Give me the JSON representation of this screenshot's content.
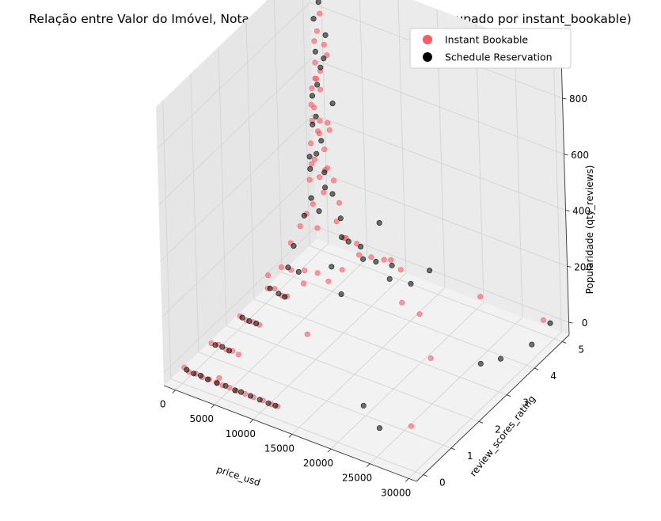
{
  "chart_data": {
    "type": "scatter",
    "projection": "3d",
    "title": "Relação entre Valor do Imóvel, Nota de Avaliação e Popularidade (agrupado por instant_bookable)",
    "xlabel": "price_usd",
    "ylabel": "review_scores_rating",
    "zlabel": "Popularidade (qty_reviews)",
    "xlim": [
      -1500,
      31000
    ],
    "ylim": [
      -0.25,
      5.25
    ],
    "zlim": [
      -45,
      950
    ],
    "x_ticks": [
      "0",
      "5000",
      "10000",
      "15000",
      "20000",
      "25000",
      "30000"
    ],
    "y_ticks": [
      "0",
      "1",
      "2",
      "3",
      "4",
      "5"
    ],
    "z_ticks": [
      "0",
      "200",
      "400",
      "600",
      "800"
    ],
    "grid": true,
    "legend": {
      "position": "top-right"
    },
    "colors": {
      "instant": "#ff5a5f",
      "schedule": "#000000",
      "pane": "#f2f2f2",
      "grid": "#d4d4d4"
    },
    "series": [
      {
        "name": "Instant Bookable",
        "color": "#ff5a5f",
        "points": [
          [
            300,
            0,
            15
          ],
          [
            900,
            0,
            5
          ],
          [
            1800,
            0,
            8
          ],
          [
            2600,
            0,
            4
          ],
          [
            3500,
            0,
            6
          ],
          [
            4400,
            0,
            5
          ],
          [
            5200,
            0,
            3
          ],
          [
            6100,
            0,
            4
          ],
          [
            7000,
            0,
            2
          ],
          [
            8100,
            0,
            3
          ],
          [
            9200,
            0,
            2
          ],
          [
            10400,
            0,
            3
          ],
          [
            11500,
            0,
            1
          ],
          [
            12300,
            0,
            2
          ],
          [
            4800,
            0,
            25
          ],
          [
            200,
            1,
            5
          ],
          [
            1100,
            1,
            10
          ],
          [
            2100,
            1,
            3
          ],
          [
            2900,
            1,
            6
          ],
          [
            3700,
            1,
            2
          ],
          [
            27000,
            0.7,
            20
          ],
          [
            300,
            2,
            8
          ],
          [
            1100,
            2,
            2
          ],
          [
            2000,
            2,
            5
          ],
          [
            2800,
            2,
            3
          ],
          [
            9000,
            2,
            35
          ],
          [
            300,
            3,
            12
          ],
          [
            1200,
            3,
            20
          ],
          [
            2100,
            3,
            5
          ],
          [
            2800,
            3,
            10
          ],
          [
            400,
            3,
            60
          ],
          [
            3500,
            3.4,
            25
          ],
          [
            300,
            3.5,
            40
          ],
          [
            1200,
            3.6,
            30
          ],
          [
            2200,
            3.8,
            20
          ],
          [
            500,
            3.8,
            100
          ],
          [
            3500,
            3.9,
            15
          ],
          [
            5600,
            4.2,
            20
          ],
          [
            14000,
            4.0,
            10
          ],
          [
            6000,
            3.6,
            40
          ],
          [
            17000,
            3.8,
            20
          ],
          [
            22000,
            2.8,
            10
          ],
          [
            300,
            4.2,
            120
          ],
          [
            800,
            4.3,
            160
          ],
          [
            1300,
            4.4,
            190
          ],
          [
            1800,
            4.4,
            110
          ],
          [
            600,
            4.5,
            260
          ],
          [
            900,
            4.5,
            320
          ],
          [
            1500,
            4.6,
            270
          ],
          [
            2000,
            4.6,
            220
          ],
          [
            500,
            4.6,
            380
          ],
          [
            1100,
            4.7,
            420
          ],
          [
            700,
            4.7,
            500
          ],
          [
            1400,
            4.7,
            460
          ],
          [
            300,
            4.75,
            560
          ],
          [
            900,
            4.75,
            600
          ],
          [
            600,
            4.8,
            650
          ],
          [
            1200,
            4.8,
            560
          ],
          [
            400,
            4.85,
            720
          ],
          [
            800,
            4.85,
            760
          ],
          [
            300,
            4.9,
            880
          ],
          [
            1000,
            4.9,
            820
          ],
          [
            600,
            4.95,
            940
          ],
          [
            1500,
            4.8,
            350
          ],
          [
            2200,
            4.7,
            300
          ],
          [
            2600,
            4.8,
            250
          ],
          [
            1800,
            4.9,
            680
          ],
          [
            700,
            4.6,
            520
          ],
          [
            400,
            4.7,
            450
          ],
          [
            1300,
            4.6,
            620
          ],
          [
            900,
            4.8,
            400
          ],
          [
            2000,
            4.8,
            450
          ],
          [
            3200,
            4.7,
            120
          ],
          [
            4000,
            4.8,
            60
          ],
          [
            5000,
            4.9,
            40
          ],
          [
            6000,
            4.7,
            30
          ],
          [
            7200,
            4.8,
            25
          ],
          [
            8500,
            4.9,
            20
          ],
          [
            3000,
            5,
            30
          ],
          [
            9000,
            5,
            15
          ],
          [
            11000,
            4.8,
            20
          ],
          [
            20500,
            5,
            5
          ],
          [
            29000,
            4.9,
            20
          ],
          [
            1500,
            5,
            400
          ],
          [
            800,
            5,
            250
          ],
          [
            2500,
            5,
            150
          ],
          [
            500,
            5,
            600
          ],
          [
            1100,
            5,
            700
          ],
          [
            200,
            4.8,
            300
          ]
        ]
      },
      {
        "name": "Schedule Reservation",
        "color": "#000000",
        "points": [
          [
            600,
            0,
            10
          ],
          [
            1500,
            0,
            6
          ],
          [
            2400,
            0,
            8
          ],
          [
            3300,
            0,
            4
          ],
          [
            4500,
            0,
            3
          ],
          [
            5600,
            0,
            5
          ],
          [
            6800,
            0,
            2
          ],
          [
            7600,
            0,
            4
          ],
          [
            8800,
            0,
            3
          ],
          [
            10000,
            0,
            2
          ],
          [
            11100,
            0,
            1
          ],
          [
            12000,
            0,
            2
          ],
          [
            700,
            1,
            4
          ],
          [
            1600,
            1,
            7
          ],
          [
            2500,
            1,
            3
          ],
          [
            20500,
            0.8,
            15
          ],
          [
            24000,
            0.4,
            10
          ],
          [
            600,
            2,
            6
          ],
          [
            1500,
            2,
            3
          ],
          [
            2400,
            2,
            4
          ],
          [
            600,
            3,
            15
          ],
          [
            1700,
            3,
            8
          ],
          [
            2500,
            3,
            5
          ],
          [
            800,
            3.6,
            35
          ],
          [
            1800,
            3.7,
            20
          ],
          [
            500,
            3.9,
            80
          ],
          [
            4600,
            4.1,
            30
          ],
          [
            8000,
            3.5,
            25
          ],
          [
            27000,
            3.2,
            5
          ],
          [
            28500,
            3.5,
            10
          ],
          [
            30000,
            4.2,
            10
          ],
          [
            500,
            4.3,
            150
          ],
          [
            1100,
            4.4,
            210
          ],
          [
            1700,
            4.5,
            160
          ],
          [
            700,
            4.5,
            300
          ],
          [
            1200,
            4.6,
            350
          ],
          [
            800,
            4.6,
            450
          ],
          [
            1500,
            4.7,
            390
          ],
          [
            500,
            4.7,
            540
          ],
          [
            1000,
            4.75,
            580
          ],
          [
            700,
            4.8,
            690
          ],
          [
            1300,
            4.8,
            640
          ],
          [
            400,
            4.85,
            800
          ],
          [
            900,
            4.9,
            860
          ],
          [
            600,
            4.95,
            930
          ],
          [
            1800,
            4.7,
            280
          ],
          [
            2400,
            4.8,
            200
          ],
          [
            3000,
            4.9,
            110
          ],
          [
            3800,
            4.7,
            70
          ],
          [
            4300,
            4.8,
            50
          ],
          [
            5500,
            4.9,
            35
          ],
          [
            6500,
            4.7,
            20
          ],
          [
            7800,
            4.8,
            15
          ],
          [
            9500,
            4.9,
            10
          ],
          [
            9500,
            4.5,
            200
          ],
          [
            11000,
            4.4,
            25
          ],
          [
            13000,
            4.6,
            10
          ],
          [
            14000,
            5,
            30
          ],
          [
            2000,
            5,
            500
          ],
          [
            1000,
            5,
            650
          ],
          [
            1700,
            4.9,
            750
          ],
          [
            900,
            4.7,
            470
          ],
          [
            300,
            4.6,
            330
          ],
          [
            2200,
            4.6,
            240
          ],
          [
            29500,
            5,
            5
          ]
        ]
      }
    ]
  }
}
